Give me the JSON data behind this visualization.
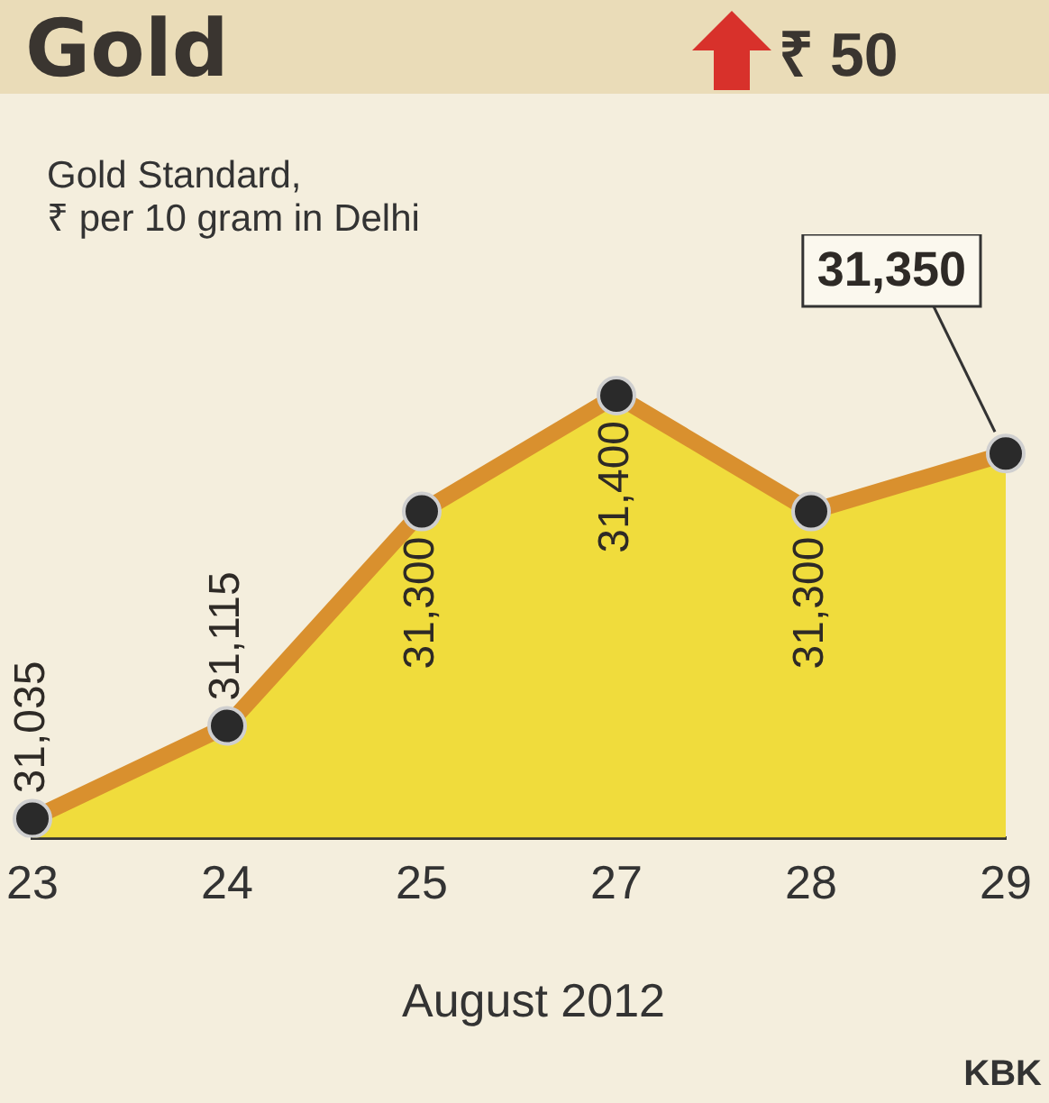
{
  "chart_data": {
    "type": "area",
    "title": "Gold",
    "subtitle": "Gold Standard,\n₹ per 10 gram in Delhi",
    "xlabel": "August 2012",
    "annotations": [
      "₹ 50",
      "KBK"
    ],
    "categories": [
      "23",
      "24",
      "25",
      "27",
      "28",
      "29"
    ],
    "series": [
      {
        "color": "#f0dc3c",
        "values": [
          31035,
          31115,
          31300,
          31400,
          31300,
          31350
        ],
        "value_labels": [
          "31,035",
          "31,115",
          "31,300",
          "31,400",
          "31,300",
          "31,350"
        ]
      }
    ],
    "tick_labels": "x",
    "marker": "circle",
    "grid": false,
    "legend": false
  }
}
